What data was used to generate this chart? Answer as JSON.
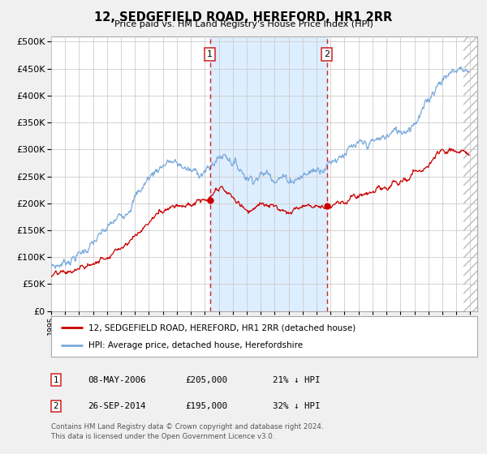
{
  "title": "12, SEDGEFIELD ROAD, HEREFORD, HR1 2RR",
  "subtitle": "Price paid vs. HM Land Registry's House Price Index (HPI)",
  "legend_line1": "12, SEDGEFIELD ROAD, HEREFORD, HR1 2RR (detached house)",
  "legend_line2": "HPI: Average price, detached house, Herefordshire",
  "footnote1": "Contains HM Land Registry data © Crown copyright and database right 2024.",
  "footnote2": "This data is licensed under the Open Government Licence v3.0.",
  "transaction1_date": "08-MAY-2006",
  "transaction1_price": "£205,000",
  "transaction1_hpi": "21% ↓ HPI",
  "transaction1_year": 2006.36,
  "transaction1_value": 205000,
  "transaction2_date": "26-SEP-2014",
  "transaction2_price": "£195,000",
  "transaction2_hpi": "32% ↓ HPI",
  "transaction2_year": 2014.74,
  "transaction2_value": 195000,
  "shade_start": 2006.36,
  "shade_end": 2014.74,
  "hatch_start": 2024.5,
  "red_color": "#cc0000",
  "blue_color": "#7aaadd",
  "shade_color": "#ddeeff",
  "hatch_color": "#cccccc",
  "grid_color": "#cccccc",
  "background_color": "#f0f0f0",
  "plot_bg_color": "#ffffff",
  "ylim_min": 0,
  "ylim_max": 510000,
  "xlim_min": 1995.0,
  "xlim_max": 2025.5,
  "hpi_keypoints_x": [
    1995.0,
    1995.5,
    1996.0,
    1996.5,
    1997.0,
    1997.5,
    1998.0,
    1998.5,
    1999.0,
    1999.5,
    2000.0,
    2000.5,
    2001.0,
    2001.5,
    2002.0,
    2002.5,
    2003.0,
    2003.5,
    2004.0,
    2004.5,
    2005.0,
    2005.5,
    2006.0,
    2006.35,
    2006.7,
    2007.0,
    2007.5,
    2008.0,
    2008.5,
    2009.0,
    2009.5,
    2010.0,
    2010.5,
    2011.0,
    2011.5,
    2012.0,
    2012.5,
    2013.0,
    2013.5,
    2014.0,
    2014.5,
    2014.74,
    2015.0,
    2015.5,
    2016.0,
    2016.5,
    2017.0,
    2017.5,
    2018.0,
    2018.5,
    2019.0,
    2019.5,
    2020.0,
    2020.5,
    2021.0,
    2021.5,
    2022.0,
    2022.3,
    2022.6,
    2023.0,
    2023.5,
    2024.0,
    2024.5,
    2024.9
  ],
  "hpi_keypoints_y": [
    82000,
    85000,
    92000,
    98000,
    105000,
    115000,
    125000,
    138000,
    152000,
    165000,
    178000,
    192000,
    210000,
    228000,
    248000,
    262000,
    272000,
    278000,
    272000,
    268000,
    258000,
    258000,
    260000,
    262000,
    278000,
    285000,
    292000,
    278000,
    265000,
    250000,
    248000,
    252000,
    256000,
    250000,
    248000,
    244000,
    246000,
    250000,
    258000,
    264000,
    270000,
    270000,
    278000,
    286000,
    295000,
    300000,
    305000,
    308000,
    312000,
    318000,
    325000,
    332000,
    335000,
    340000,
    352000,
    368000,
    390000,
    408000,
    420000,
    432000,
    440000,
    448000,
    452000,
    445000
  ],
  "prop_keypoints_x": [
    1995.0,
    1995.5,
    1996.0,
    1996.5,
    1997.0,
    1997.5,
    1998.0,
    1998.5,
    1999.0,
    1999.5,
    2000.0,
    2000.5,
    2001.0,
    2001.5,
    2002.0,
    2002.5,
    2003.0,
    2003.5,
    2004.0,
    2004.5,
    2005.0,
    2005.3,
    2005.6,
    2006.0,
    2006.35,
    2006.7,
    2007.0,
    2007.2,
    2007.5,
    2008.0,
    2008.5,
    2009.0,
    2009.3,
    2009.6,
    2010.0,
    2010.5,
    2011.0,
    2011.5,
    2012.0,
    2012.5,
    2013.0,
    2013.5,
    2014.0,
    2014.5,
    2014.74,
    2015.0,
    2015.5,
    2016.0,
    2016.5,
    2017.0,
    2017.5,
    2018.0,
    2018.5,
    2019.0,
    2019.5,
    2020.0,
    2020.5,
    2021.0,
    2021.5,
    2022.0,
    2022.3,
    2022.6,
    2023.0,
    2023.3,
    2023.6,
    2024.0,
    2024.5,
    2024.9
  ],
  "prop_keypoints_y": [
    65000,
    67000,
    70000,
    73000,
    78000,
    83000,
    88000,
    95000,
    103000,
    112000,
    120000,
    130000,
    140000,
    152000,
    165000,
    178000,
    188000,
    196000,
    200000,
    198000,
    195000,
    200000,
    205000,
    202000,
    205000,
    218000,
    222000,
    225000,
    222000,
    210000,
    198000,
    188000,
    190000,
    195000,
    196000,
    194000,
    192000,
    190000,
    188000,
    190000,
    192000,
    198000,
    200000,
    198000,
    195000,
    198000,
    202000,
    205000,
    208000,
    212000,
    216000,
    220000,
    225000,
    228000,
    232000,
    238000,
    245000,
    255000,
    262000,
    272000,
    280000,
    288000,
    292000,
    296000,
    295000,
    292000,
    290000,
    292000
  ]
}
